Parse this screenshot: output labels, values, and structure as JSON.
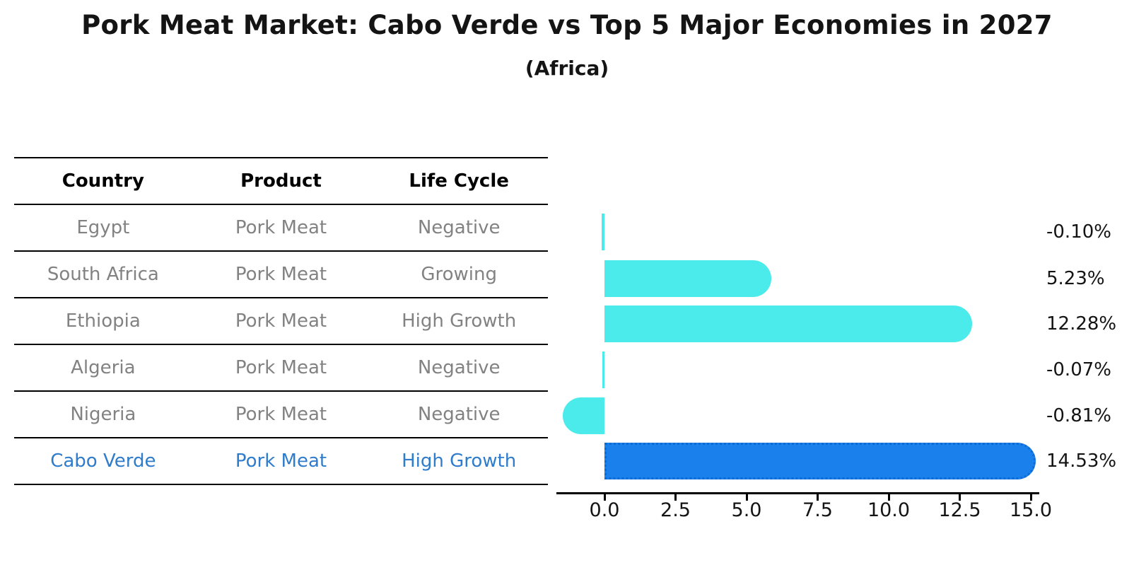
{
  "header": {
    "title": "Pork Meat Market: Cabo Verde vs Top 5 Major Economies in 2027",
    "subtitle": "(Africa)"
  },
  "table": {
    "headers": [
      "Country",
      "Product",
      "Life Cycle"
    ],
    "rows": [
      {
        "country": "Egypt",
        "product": "Pork Meat",
        "life_cycle": "Negative",
        "highlighted": false
      },
      {
        "country": "South Africa",
        "product": "Pork Meat",
        "life_cycle": "Growing",
        "highlighted": false
      },
      {
        "country": "Ethiopia",
        "product": "Pork Meat",
        "life_cycle": "High Growth",
        "highlighted": false
      },
      {
        "country": "Algeria",
        "product": "Pork Meat",
        "life_cycle": "Negative",
        "highlighted": false
      },
      {
        "country": "Nigeria",
        "product": "Pork Meat",
        "life_cycle": "Negative",
        "highlighted": false
      },
      {
        "country": "Cabo Verde",
        "product": "Pork Meat",
        "life_cycle": "High Growth",
        "highlighted": true
      }
    ]
  },
  "chart_data": {
    "type": "bar",
    "orientation": "horizontal",
    "title": "Pork Meat Market: Cabo Verde vs Top 5 Major Economies in 2027",
    "subtitle": "(Africa)",
    "categories": [
      "Egypt",
      "South Africa",
      "Ethiopia",
      "Algeria",
      "Nigeria",
      "Cabo Verde"
    ],
    "values": [
      -0.1,
      5.23,
      12.28,
      -0.07,
      -0.81,
      14.53
    ],
    "value_labels": [
      "-0.10%",
      "5.23%",
      "12.28%",
      "-0.07%",
      "-0.81%",
      "14.53%"
    ],
    "highlight_index": 5,
    "xticks": [
      0.0,
      2.5,
      5.0,
      7.5,
      10.0,
      12.5,
      15.0
    ],
    "xticklabels": [
      "0.0",
      "2.5",
      "5.0",
      "7.5",
      "10.0",
      "12.5",
      "15.0"
    ],
    "xlim": [
      -1.7,
      15.3
    ],
    "xlabel": "",
    "ylabel": "",
    "grid": false,
    "legend": null,
    "colors": {
      "bar": "#4bebeb",
      "highlight_bar": "#1a80ec",
      "highlight_border": "#0d6bd6",
      "highlight_text": "#2e7ccb",
      "text": "#141414",
      "muted_text": "#828282",
      "axis": "#000000"
    }
  }
}
